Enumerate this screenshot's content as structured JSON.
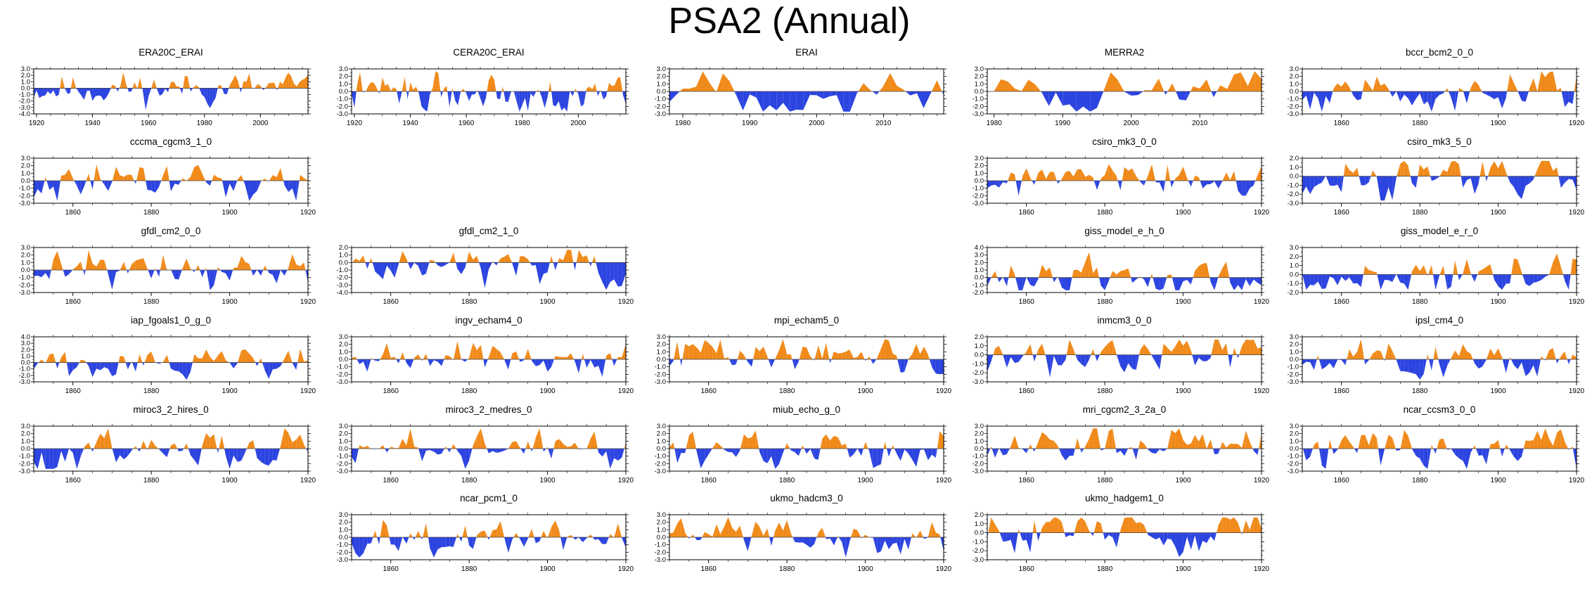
{
  "title": "PSA2 (Annual)",
  "colors": {
    "positive": "#f08a1a",
    "negative": "#2c44e0",
    "axis": "#000000"
  },
  "chart_data": [
    {
      "type": "area",
      "title": "ERA20C_ERAI",
      "x_range": [
        1919,
        2017
      ],
      "x_ticks": [
        1920,
        1940,
        1960,
        1980,
        2000
      ],
      "y_ticks": [
        3.0,
        2.0,
        1.0,
        0.0,
        -1.0,
        -2.0,
        -3.0,
        -4.0
      ],
      "ylim": [
        -4,
        3
      ],
      "amplitude": 1.5,
      "seed": 11
    },
    {
      "type": "area",
      "title": "CERA20C_ERAI",
      "x_range": [
        1919,
        2017
      ],
      "x_ticks": [
        1920,
        1940,
        1960,
        1980,
        2000
      ],
      "y_ticks": [
        3.0,
        2.0,
        1.0,
        0.0,
        -1.0,
        -2.0,
        -3.0
      ],
      "ylim": [
        -3,
        3
      ],
      "amplitude": 1.5,
      "seed": 22
    },
    {
      "type": "area",
      "title": "ERAI",
      "x_range": [
        1978,
        2019
      ],
      "x_ticks": [
        1980,
        1990,
        2000,
        2010
      ],
      "y_ticks": [
        3.0,
        2.0,
        1.0,
        0.0,
        -1.0,
        -2.0,
        -3.0
      ],
      "ylim": [
        -3,
        3
      ],
      "amplitude": 1.6,
      "seed": 33
    },
    {
      "type": "area",
      "title": "MERRA2",
      "x_range": [
        1979,
        2019
      ],
      "x_ticks": [
        1980,
        1990,
        2000,
        2010
      ],
      "y_ticks": [
        3.0,
        2.0,
        1.0,
        0.0,
        -1.0,
        -2.0,
        -3.0
      ],
      "ylim": [
        -3,
        3
      ],
      "amplitude": 1.6,
      "seed": 44
    },
    {
      "type": "area",
      "title": "bccr_bcm2_0_0",
      "x_range": [
        1850,
        1920
      ],
      "x_ticks": [
        1860,
        1880,
        1900,
        1920
      ],
      "y_ticks": [
        3.0,
        2.0,
        1.0,
        0.0,
        -1.0,
        -2.0,
        -3.0
      ],
      "ylim": [
        -3,
        3
      ],
      "amplitude": 1.5,
      "seed": 55
    },
    {
      "type": "area",
      "title": "cccma_cgcm3_1_0",
      "x_range": [
        1850,
        1920
      ],
      "x_ticks": [
        1860,
        1880,
        1900,
        1920
      ],
      "y_ticks": [
        3.0,
        2.0,
        1.0,
        0.0,
        -1.0,
        -2.0,
        -3.0
      ],
      "ylim": [
        -3,
        3
      ],
      "amplitude": 1.5,
      "seed": 66
    },
    {
      "type": "area",
      "title": "csiro_mk3_0_0",
      "x_range": [
        1850,
        1920
      ],
      "x_ticks": [
        1860,
        1880,
        1900,
        1920
      ],
      "y_ticks": [
        3.0,
        2.0,
        1.0,
        0.0,
        -1.0,
        -2.0,
        -3.0
      ],
      "ylim": [
        -3,
        3
      ],
      "amplitude": 1.5,
      "seed": 77
    },
    {
      "type": "area",
      "title": "csiro_mk3_5_0",
      "x_range": [
        1850,
        1920
      ],
      "x_ticks": [
        1860,
        1880,
        1900,
        1920
      ],
      "y_ticks": [
        2.0,
        1.0,
        0.0,
        -1.0,
        -2.0,
        -3.0
      ],
      "ylim": [
        -3,
        2
      ],
      "amplitude": 1.4,
      "seed": 88
    },
    {
      "type": "area",
      "title": "gfdl_cm2_0_0",
      "x_range": [
        1850,
        1920
      ],
      "x_ticks": [
        1860,
        1880,
        1900,
        1920
      ],
      "y_ticks": [
        3.0,
        2.0,
        1.0,
        0.0,
        -1.0,
        -2.0,
        -3.0
      ],
      "ylim": [
        -3,
        3
      ],
      "amplitude": 1.5,
      "seed": 99
    },
    {
      "type": "area",
      "title": "gfdl_cm2_1_0",
      "x_range": [
        1850,
        1920
      ],
      "x_ticks": [
        1860,
        1880,
        1900,
        1920
      ],
      "y_ticks": [
        2.0,
        1.0,
        0.0,
        -1.0,
        -2.0,
        -3.0,
        -4.0
      ],
      "ylim": [
        -4,
        2
      ],
      "amplitude": 1.5,
      "seed": 111
    },
    {
      "type": "area",
      "title": "giss_model_e_h_0",
      "x_range": [
        1850,
        1920
      ],
      "x_ticks": [
        1860,
        1880,
        1900,
        1920
      ],
      "y_ticks": [
        4.0,
        3.0,
        2.0,
        1.0,
        0.0,
        -1.0,
        -2.0
      ],
      "ylim": [
        -2,
        4
      ],
      "amplitude": 1.4,
      "seed": 122
    },
    {
      "type": "area",
      "title": "giss_model_e_r_0",
      "x_range": [
        1850,
        1920
      ],
      "x_ticks": [
        1860,
        1880,
        1900,
        1920
      ],
      "y_ticks": [
        3.0,
        2.0,
        1.0,
        0.0,
        -1.0,
        -2.0
      ],
      "ylim": [
        -2,
        3
      ],
      "amplitude": 1.4,
      "seed": 133
    },
    {
      "type": "area",
      "title": "iap_fgoals1_0_g_0",
      "x_range": [
        1850,
        1920
      ],
      "x_ticks": [
        1860,
        1880,
        1900,
        1920
      ],
      "y_ticks": [
        4.0,
        3.0,
        2.0,
        1.0,
        0.0,
        -1.0,
        -2.0,
        -3.0
      ],
      "ylim": [
        -3,
        4
      ],
      "amplitude": 1.4,
      "seed": 144
    },
    {
      "type": "area",
      "title": "ingv_echam4_0",
      "x_range": [
        1850,
        1920
      ],
      "x_ticks": [
        1860,
        1880,
        1900,
        1920
      ],
      "y_ticks": [
        3.0,
        2.0,
        1.0,
        0.0,
        -1.0,
        -2.0,
        -3.0
      ],
      "ylim": [
        -3,
        3
      ],
      "amplitude": 1.5,
      "seed": 155
    },
    {
      "type": "area",
      "title": "mpi_echam5_0",
      "x_range": [
        1850,
        1920
      ],
      "x_ticks": [
        1860,
        1880,
        1900,
        1920
      ],
      "y_ticks": [
        3.0,
        2.0,
        1.0,
        0.0,
        -1.0,
        -2.0,
        -3.0
      ],
      "ylim": [
        -3,
        3
      ],
      "amplitude": 1.5,
      "seed": 166
    },
    {
      "type": "area",
      "title": "inmcm3_0_0",
      "x_range": [
        1850,
        1920
      ],
      "x_ticks": [
        1860,
        1880,
        1900,
        1920
      ],
      "y_ticks": [
        2.0,
        1.0,
        0.0,
        -1.0,
        -2.0,
        -3.0
      ],
      "ylim": [
        -3,
        2
      ],
      "amplitude": 1.4,
      "seed": 177
    },
    {
      "type": "area",
      "title": "ipsl_cm4_0",
      "x_range": [
        1850,
        1920
      ],
      "x_ticks": [
        1860,
        1880,
        1900,
        1920
      ],
      "y_ticks": [
        3.0,
        2.0,
        1.0,
        0.0,
        -1.0,
        -2.0,
        -3.0
      ],
      "ylim": [
        -3,
        3
      ],
      "amplitude": 1.5,
      "seed": 188
    },
    {
      "type": "area",
      "title": "miroc3_2_hires_0",
      "x_range": [
        1850,
        1920
      ],
      "x_ticks": [
        1860,
        1880,
        1900,
        1920
      ],
      "y_ticks": [
        3.0,
        2.0,
        1.0,
        0.0,
        -1.0,
        -2.0,
        -3.0
      ],
      "ylim": [
        -3,
        3
      ],
      "amplitude": 1.5,
      "seed": 199
    },
    {
      "type": "area",
      "title": "miroc3_2_medres_0",
      "x_range": [
        1850,
        1920
      ],
      "x_ticks": [
        1860,
        1880,
        1900,
        1920
      ],
      "y_ticks": [
        3.0,
        2.0,
        1.0,
        0.0,
        -1.0,
        -2.0,
        -3.0
      ],
      "ylim": [
        -3,
        3
      ],
      "amplitude": 1.5,
      "seed": 211
    },
    {
      "type": "area",
      "title": "miub_echo_g_0",
      "x_range": [
        1850,
        1920
      ],
      "x_ticks": [
        1860,
        1880,
        1900,
        1920
      ],
      "y_ticks": [
        3.0,
        2.0,
        1.0,
        0.0,
        -1.0,
        -2.0,
        -3.0
      ],
      "ylim": [
        -3,
        3
      ],
      "amplitude": 1.5,
      "seed": 222
    },
    {
      "type": "area",
      "title": "mri_cgcm2_3_2a_0",
      "x_range": [
        1850,
        1920
      ],
      "x_ticks": [
        1860,
        1880,
        1900,
        1920
      ],
      "y_ticks": [
        3.0,
        2.0,
        1.0,
        0.0,
        -1.0,
        -2.0,
        -3.0
      ],
      "ylim": [
        -3,
        3
      ],
      "amplitude": 1.5,
      "seed": 233
    },
    {
      "type": "area",
      "title": "ncar_ccsm3_0_0",
      "x_range": [
        1850,
        1920
      ],
      "x_ticks": [
        1860,
        1880,
        1900,
        1920
      ],
      "y_ticks": [
        3.0,
        2.0,
        1.0,
        0.0,
        -1.0,
        -2.0,
        -3.0
      ],
      "ylim": [
        -3,
        3
      ],
      "amplitude": 1.5,
      "seed": 244
    },
    {
      "type": "area",
      "title": "ncar_pcm1_0",
      "x_range": [
        1850,
        1920
      ],
      "x_ticks": [
        1860,
        1880,
        1900,
        1920
      ],
      "y_ticks": [
        3.0,
        2.0,
        1.0,
        0.0,
        -1.0,
        -2.0,
        -3.0
      ],
      "ylim": [
        -3,
        3
      ],
      "amplitude": 1.5,
      "seed": 255
    },
    {
      "type": "area",
      "title": "ukmo_hadcm3_0",
      "x_range": [
        1850,
        1920
      ],
      "x_ticks": [
        1860,
        1880,
        1900,
        1920
      ],
      "y_ticks": [
        3.0,
        2.0,
        1.0,
        0.0,
        -1.0,
        -2.0,
        -3.0
      ],
      "ylim": [
        -3,
        3
      ],
      "amplitude": 1.5,
      "seed": 266
    },
    {
      "type": "area",
      "title": "ukmo_hadgem1_0",
      "x_range": [
        1850,
        1920
      ],
      "x_ticks": [
        1860,
        1880,
        1900,
        1920
      ],
      "y_ticks": [
        2.0,
        1.0,
        0.0,
        -1.0,
        -2.0,
        -3.0
      ],
      "ylim": [
        -3,
        2
      ],
      "amplitude": 1.4,
      "seed": 277
    }
  ]
}
